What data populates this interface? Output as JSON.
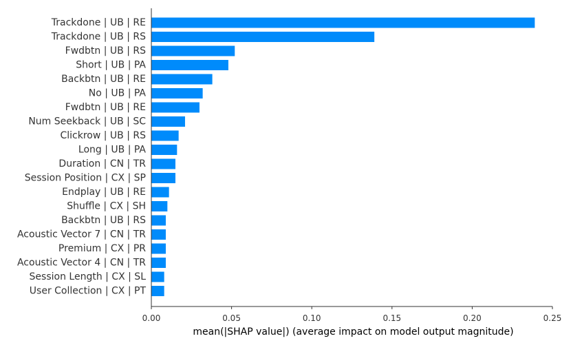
{
  "chart_data": {
    "type": "bar",
    "orientation": "horizontal",
    "title": "",
    "xlabel": "mean(|SHAP value|) (average impact on model output magnitude)",
    "ylabel": "",
    "xlim": [
      0,
      0.25
    ],
    "x_ticks": [
      "0.00",
      "0.05",
      "0.10",
      "0.15",
      "0.20",
      "0.25"
    ],
    "x_tick_values": [
      0,
      0.05,
      0.1,
      0.15,
      0.2,
      0.25
    ],
    "bar_color": "#008bfb",
    "grid": false,
    "legend": "none",
    "categories": [
      "Trackdone | UB | RE",
      "Trackdone | UB | RS",
      "Fwdbtn | UB | RS",
      "Short | UB | PA",
      "Backbtn | UB | RE",
      "No | UB | PA",
      "Fwdbtn | UB | RE",
      "Num Seekback | UB | SC",
      "Clickrow | UB | RS",
      "Long | UB | PA",
      "Duration | CN | TR",
      "Session Position | CX | SP",
      "Endplay | UB | RE",
      "Shuffle | CX | SH",
      "Backbtn | UB | RS",
      "Acoustic Vector 7 | CN | TR",
      "Premium | CX | PR",
      "Acoustic Vector 4 | CN | TR",
      "Session Length | CX | SL",
      "User Collection | CX | PT"
    ],
    "values": [
      0.239,
      0.139,
      0.052,
      0.048,
      0.038,
      0.032,
      0.03,
      0.021,
      0.017,
      0.016,
      0.015,
      0.015,
      0.011,
      0.01,
      0.009,
      0.009,
      0.009,
      0.009,
      0.008,
      0.008
    ]
  }
}
